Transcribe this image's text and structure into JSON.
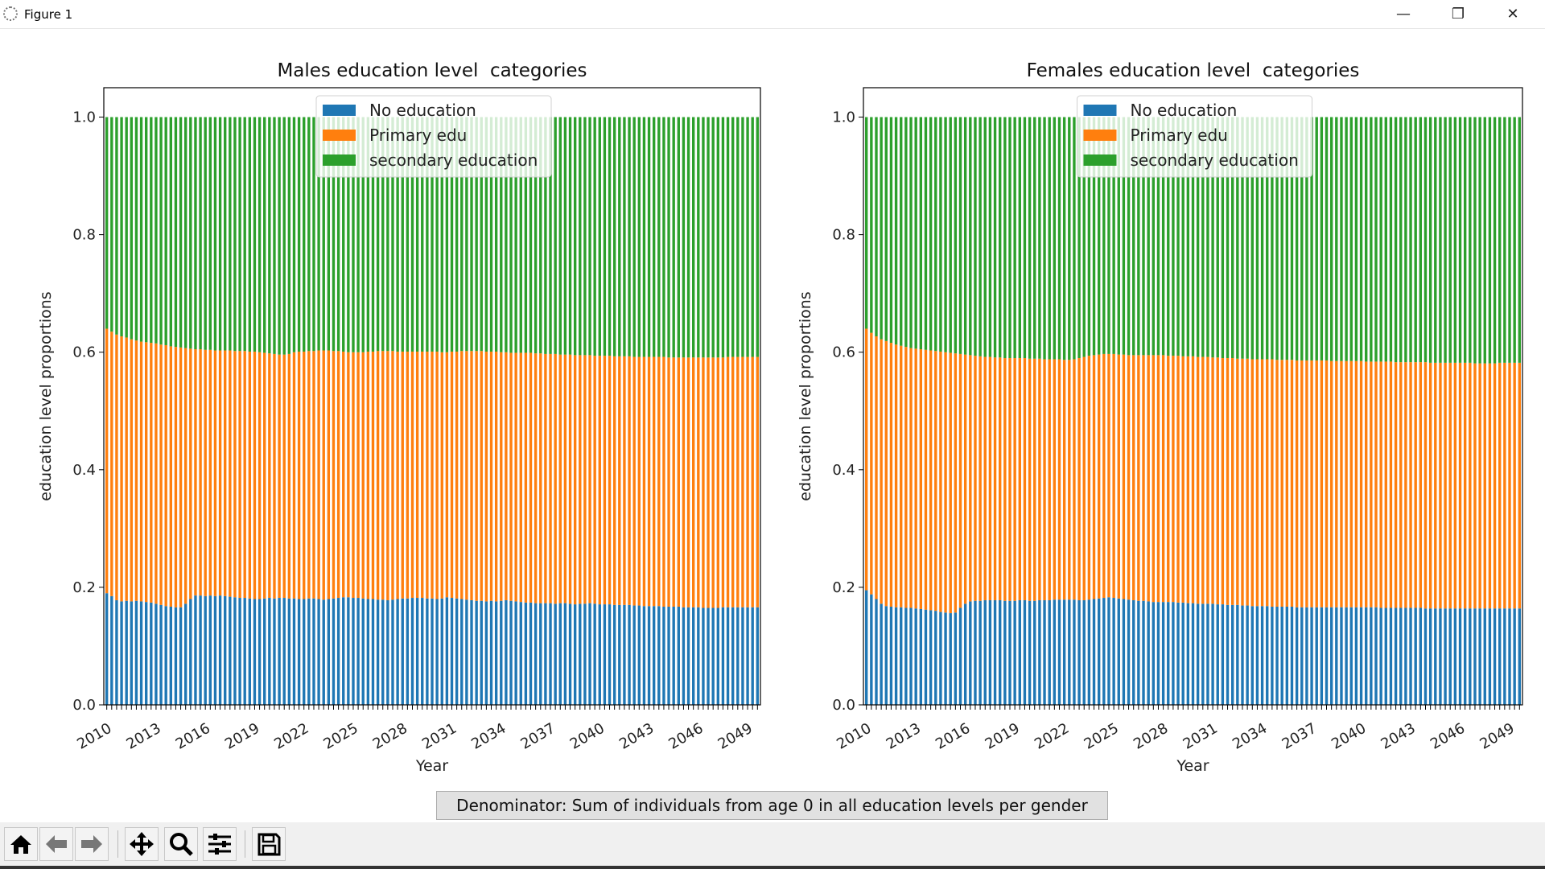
{
  "window": {
    "title": "Figure 1",
    "minimize_icon": "minimize-icon",
    "restore_icon": "restore-icon",
    "close_icon": "close-icon"
  },
  "colors": {
    "no_education": "#1f77b4",
    "primary": "#ff7f0e",
    "secondary": "#2ca02c"
  },
  "chart_data": [
    {
      "type": "bar",
      "stacked": true,
      "title": "Males education level  categories",
      "xlabel": "Year",
      "ylabel": "education level proportions",
      "ylim": [
        0,
        1.05
      ],
      "yticks": [
        "0.0",
        "0.2",
        "0.4",
        "0.6",
        "0.8",
        "1.0"
      ],
      "xtick_labels": [
        "2010",
        "2013",
        "2016",
        "2019",
        "2022",
        "2025",
        "2028",
        "2031",
        "2034",
        "2037",
        "2040",
        "2043",
        "2046",
        "2049"
      ],
      "legend_position": "top-center",
      "grid": false,
      "series": [
        {
          "name": "No education",
          "values": [
            0.19,
            0.185,
            0.178,
            0.176,
            0.177,
            0.176,
            0.177,
            0.176,
            0.175,
            0.174,
            0.172,
            0.17,
            0.168,
            0.167,
            0.166,
            0.166,
            0.172,
            0.18,
            0.186,
            0.186,
            0.185,
            0.186,
            0.185,
            0.186,
            0.185,
            0.184,
            0.183,
            0.182,
            0.182,
            0.181,
            0.18,
            0.18,
            0.181,
            0.182,
            0.181,
            0.182,
            0.182,
            0.181,
            0.181,
            0.18,
            0.18,
            0.181,
            0.181,
            0.18,
            0.179,
            0.18,
            0.181,
            0.182,
            0.183,
            0.183,
            0.182,
            0.182,
            0.181,
            0.18,
            0.18,
            0.179,
            0.179,
            0.178,
            0.179,
            0.18,
            0.181,
            0.181,
            0.182,
            0.182,
            0.182,
            0.181,
            0.181,
            0.18,
            0.181,
            0.183,
            0.182,
            0.181,
            0.18,
            0.179,
            0.178,
            0.177,
            0.177,
            0.176,
            0.177,
            0.176,
            0.177,
            0.178,
            0.177,
            0.176,
            0.175,
            0.174,
            0.174,
            0.173,
            0.173,
            0.173,
            0.173,
            0.172,
            0.173,
            0.173,
            0.172,
            0.171,
            0.172,
            0.172,
            0.173,
            0.172,
            0.171,
            0.171,
            0.171,
            0.17,
            0.17,
            0.17,
            0.17,
            0.169,
            0.169,
            0.168,
            0.168,
            0.168,
            0.168,
            0.167,
            0.167,
            0.167,
            0.167,
            0.166,
            0.166,
            0.166,
            0.166,
            0.165,
            0.165,
            0.165,
            0.165,
            0.166,
            0.166,
            0.166,
            0.166,
            0.166,
            0.166,
            0.166,
            0.166
          ]
        },
        {
          "name": "Primary edu",
          "values": [
            0.45,
            0.45,
            0.452,
            0.451,
            0.448,
            0.446,
            0.443,
            0.442,
            0.442,
            0.442,
            0.443,
            0.443,
            0.444,
            0.443,
            0.443,
            0.442,
            0.435,
            0.426,
            0.419,
            0.419,
            0.419,
            0.418,
            0.418,
            0.417,
            0.418,
            0.419,
            0.419,
            0.42,
            0.42,
            0.42,
            0.421,
            0.42,
            0.418,
            0.416,
            0.416,
            0.414,
            0.414,
            0.416,
            0.419,
            0.421,
            0.421,
            0.421,
            0.421,
            0.423,
            0.424,
            0.423,
            0.421,
            0.42,
            0.418,
            0.417,
            0.418,
            0.418,
            0.419,
            0.421,
            0.421,
            0.423,
            0.423,
            0.424,
            0.423,
            0.421,
            0.42,
            0.42,
            0.419,
            0.419,
            0.419,
            0.42,
            0.42,
            0.421,
            0.419,
            0.417,
            0.419,
            0.42,
            0.422,
            0.423,
            0.424,
            0.425,
            0.425,
            0.425,
            0.424,
            0.425,
            0.423,
            0.422,
            0.422,
            0.423,
            0.424,
            0.425,
            0.425,
            0.425,
            0.425,
            0.424,
            0.424,
            0.425,
            0.423,
            0.423,
            0.424,
            0.424,
            0.423,
            0.423,
            0.422,
            0.422,
            0.423,
            0.423,
            0.423,
            0.423,
            0.423,
            0.423,
            0.423,
            0.423,
            0.423,
            0.424,
            0.424,
            0.424,
            0.424,
            0.425,
            0.424,
            0.424,
            0.424,
            0.425,
            0.425,
            0.425,
            0.425,
            0.426,
            0.426,
            0.426,
            0.426,
            0.425,
            0.426,
            0.426,
            0.426,
            0.426,
            0.426,
            0.426,
            0.426
          ]
        },
        {
          "name": "secondary education",
          "values": [
            0.36,
            0.365,
            0.37,
            0.373,
            0.375,
            0.378,
            0.38,
            0.382,
            0.383,
            0.384,
            0.385,
            0.387,
            0.388,
            0.39,
            0.391,
            0.392,
            0.393,
            0.394,
            0.395,
            0.395,
            0.396,
            0.396,
            0.397,
            0.397,
            0.397,
            0.397,
            0.398,
            0.398,
            0.398,
            0.399,
            0.399,
            0.4,
            0.401,
            0.402,
            0.403,
            0.404,
            0.404,
            0.403,
            0.4,
            0.399,
            0.399,
            0.398,
            0.398,
            0.397,
            0.397,
            0.397,
            0.398,
            0.398,
            0.399,
            0.4,
            0.4,
            0.4,
            0.4,
            0.399,
            0.399,
            0.398,
            0.398,
            0.398,
            0.398,
            0.399,
            0.399,
            0.399,
            0.399,
            0.399,
            0.399,
            0.399,
            0.399,
            0.399,
            0.4,
            0.4,
            0.399,
            0.399,
            0.398,
            0.398,
            0.398,
            0.398,
            0.398,
            0.399,
            0.399,
            0.399,
            0.4,
            0.4,
            0.401,
            0.401,
            0.401,
            0.401,
            0.401,
            0.402,
            0.402,
            0.403,
            0.403,
            0.403,
            0.404,
            0.404,
            0.404,
            0.405,
            0.405,
            0.405,
            0.405,
            0.406,
            0.406,
            0.406,
            0.406,
            0.407,
            0.407,
            0.407,
            0.407,
            0.408,
            0.408,
            0.408,
            0.408,
            0.408,
            0.408,
            0.408,
            0.409,
            0.409,
            0.409,
            0.409,
            0.409,
            0.409,
            0.409,
            0.409,
            0.409,
            0.409,
            0.409,
            0.409,
            0.408,
            0.408,
            0.408,
            0.408,
            0.408,
            0.408,
            0.408
          ]
        }
      ]
    },
    {
      "type": "bar",
      "stacked": true,
      "title": "Females education level  categories",
      "xlabel": "Year",
      "ylabel": "education level proportions",
      "ylim": [
        0,
        1.05
      ],
      "yticks": [
        "0.0",
        "0.2",
        "0.4",
        "0.6",
        "0.8",
        "1.0"
      ],
      "xtick_labels": [
        "2010",
        "2013",
        "2016",
        "2019",
        "2022",
        "2025",
        "2028",
        "2031",
        "2034",
        "2037",
        "2040",
        "2043",
        "2046",
        "2049"
      ],
      "legend_position": "top-center",
      "grid": false,
      "series": [
        {
          "name": "No education",
          "values": [
            0.195,
            0.188,
            0.18,
            0.172,
            0.168,
            0.167,
            0.166,
            0.166,
            0.165,
            0.165,
            0.164,
            0.163,
            0.162,
            0.161,
            0.16,
            0.158,
            0.157,
            0.156,
            0.157,
            0.165,
            0.172,
            0.176,
            0.177,
            0.177,
            0.178,
            0.178,
            0.178,
            0.178,
            0.177,
            0.177,
            0.177,
            0.178,
            0.178,
            0.177,
            0.177,
            0.178,
            0.178,
            0.178,
            0.179,
            0.179,
            0.179,
            0.179,
            0.179,
            0.178,
            0.178,
            0.179,
            0.18,
            0.181,
            0.182,
            0.183,
            0.182,
            0.181,
            0.18,
            0.179,
            0.178,
            0.177,
            0.177,
            0.176,
            0.175,
            0.175,
            0.175,
            0.175,
            0.175,
            0.174,
            0.174,
            0.173,
            0.173,
            0.172,
            0.172,
            0.172,
            0.172,
            0.171,
            0.171,
            0.17,
            0.17,
            0.17,
            0.169,
            0.169,
            0.168,
            0.168,
            0.168,
            0.168,
            0.167,
            0.167,
            0.167,
            0.167,
            0.167,
            0.166,
            0.166,
            0.166,
            0.166,
            0.166,
            0.166,
            0.166,
            0.166,
            0.166,
            0.166,
            0.166,
            0.166,
            0.166,
            0.166,
            0.166,
            0.166,
            0.166,
            0.165,
            0.165,
            0.165,
            0.165,
            0.165,
            0.165,
            0.165,
            0.165,
            0.165,
            0.164,
            0.164,
            0.164,
            0.164,
            0.164,
            0.164,
            0.164,
            0.164,
            0.164,
            0.164,
            0.164,
            0.164,
            0.164,
            0.164,
            0.164,
            0.164,
            0.164,
            0.164,
            0.164,
            0.164
          ]
        },
        {
          "name": "Primary edu",
          "values": [
            0.445,
            0.445,
            0.447,
            0.45,
            0.451,
            0.449,
            0.447,
            0.445,
            0.444,
            0.442,
            0.442,
            0.442,
            0.442,
            0.442,
            0.442,
            0.443,
            0.443,
            0.443,
            0.441,
            0.432,
            0.424,
            0.419,
            0.417,
            0.416,
            0.414,
            0.414,
            0.413,
            0.413,
            0.413,
            0.413,
            0.413,
            0.412,
            0.412,
            0.412,
            0.412,
            0.411,
            0.41,
            0.41,
            0.409,
            0.409,
            0.408,
            0.408,
            0.409,
            0.412,
            0.414,
            0.415,
            0.415,
            0.415,
            0.415,
            0.414,
            0.415,
            0.415,
            0.416,
            0.416,
            0.417,
            0.418,
            0.418,
            0.419,
            0.42,
            0.42,
            0.42,
            0.419,
            0.419,
            0.42,
            0.419,
            0.42,
            0.42,
            0.42,
            0.42,
            0.42,
            0.419,
            0.42,
            0.419,
            0.42,
            0.42,
            0.419,
            0.42,
            0.42,
            0.42,
            0.42,
            0.42,
            0.42,
            0.421,
            0.42,
            0.42,
            0.42,
            0.42,
            0.42,
            0.42,
            0.42,
            0.42,
            0.42,
            0.42,
            0.42,
            0.419,
            0.419,
            0.419,
            0.419,
            0.419,
            0.419,
            0.419,
            0.418,
            0.418,
            0.418,
            0.419,
            0.419,
            0.419,
            0.418,
            0.418,
            0.418,
            0.418,
            0.418,
            0.418,
            0.419,
            0.418,
            0.418,
            0.418,
            0.418,
            0.418,
            0.418,
            0.418,
            0.418,
            0.418,
            0.417,
            0.417,
            0.417,
            0.417,
            0.417,
            0.418,
            0.418,
            0.418,
            0.418,
            0.418
          ]
        },
        {
          "name": "secondary education",
          "values": [
            0.36,
            0.367,
            0.373,
            0.378,
            0.381,
            0.384,
            0.387,
            0.389,
            0.391,
            0.393,
            0.394,
            0.395,
            0.396,
            0.397,
            0.398,
            0.399,
            0.4,
            0.401,
            0.402,
            0.403,
            0.404,
            0.405,
            0.406,
            0.407,
            0.408,
            0.408,
            0.409,
            0.409,
            0.41,
            0.41,
            0.41,
            0.41,
            0.41,
            0.411,
            0.411,
            0.411,
            0.412,
            0.412,
            0.412,
            0.412,
            0.413,
            0.413,
            0.412,
            0.41,
            0.408,
            0.406,
            0.405,
            0.404,
            0.403,
            0.403,
            0.403,
            0.404,
            0.404,
            0.405,
            0.405,
            0.405,
            0.405,
            0.405,
            0.405,
            0.405,
            0.405,
            0.406,
            0.406,
            0.406,
            0.407,
            0.407,
            0.407,
            0.408,
            0.408,
            0.408,
            0.409,
            0.409,
            0.41,
            0.41,
            0.41,
            0.411,
            0.411,
            0.411,
            0.412,
            0.412,
            0.412,
            0.412,
            0.412,
            0.413,
            0.413,
            0.413,
            0.413,
            0.414,
            0.414,
            0.414,
            0.414,
            0.414,
            0.414,
            0.414,
            0.415,
            0.415,
            0.415,
            0.415,
            0.415,
            0.415,
            0.415,
            0.416,
            0.416,
            0.416,
            0.416,
            0.416,
            0.416,
            0.417,
            0.417,
            0.417,
            0.417,
            0.417,
            0.417,
            0.417,
            0.418,
            0.418,
            0.418,
            0.418,
            0.418,
            0.418,
            0.418,
            0.418,
            0.418,
            0.419,
            0.419,
            0.419,
            0.419,
            0.419,
            0.418,
            0.418,
            0.418,
            0.418,
            0.418
          ]
        }
      ]
    }
  ],
  "footer": {
    "denominator_text": "Denominator: Sum of individuals from age 0 in all education levels per gender"
  },
  "toolbar": {
    "buttons": [
      "home-icon",
      "back-arrow-icon",
      "forward-arrow-icon",
      "pan-icon",
      "zoom-icon",
      "configure-subplots-icon",
      "save-icon"
    ]
  }
}
